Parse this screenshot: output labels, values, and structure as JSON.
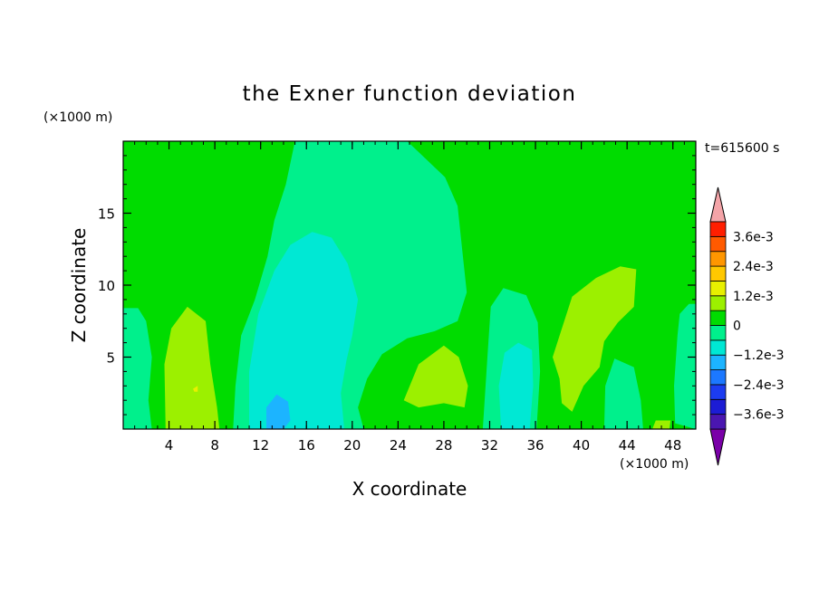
{
  "chart_data": {
    "type": "heatmap",
    "title": "the Exner function deviation",
    "xlabel": "X coordinate",
    "ylabel": "Z coordinate",
    "x_unit": "(×1000 m)",
    "y_unit": "(×1000 m)",
    "time_label": "t=615600 s",
    "xlim": [
      0,
      50
    ],
    "ylim": [
      0,
      20
    ],
    "x_ticks": [
      4,
      8,
      12,
      16,
      20,
      24,
      28,
      32,
      36,
      40,
      44,
      48
    ],
    "y_ticks": [
      5,
      10,
      15
    ],
    "colorbar": {
      "levels": [
        -0.0042,
        -0.0036,
        -0.003,
        -0.0024,
        -0.0018,
        -0.0012,
        -0.0006,
        0,
        0.0006,
        0.0012,
        0.0018,
        0.0024,
        0.003,
        0.0036,
        0.0042
      ],
      "colors": [
        "#7a00a8",
        "#4a16b0",
        "#1c1cd4",
        "#1c3cf0",
        "#1c78ff",
        "#1cb4ff",
        "#00e8d4",
        "#00f08c",
        "#00dc00",
        "#9cf000",
        "#e8f000",
        "#ffc800",
        "#ff9600",
        "#ff5a00",
        "#ff1e00",
        "#f4a4a8"
      ],
      "tick_labels": [
        {
          "value": 0.0036,
          "label": "3.6e-3"
        },
        {
          "value": 0.0024,
          "label": "2.4e-3"
        },
        {
          "value": 0.0012,
          "label": "1.2e-3"
        },
        {
          "value": 0,
          "label": "0"
        },
        {
          "value": -0.0012,
          "label": "−1.2e-3"
        },
        {
          "value": -0.0024,
          "label": "−2.4e-3"
        },
        {
          "value": -0.0036,
          "label": "−3.6e-3"
        }
      ]
    },
    "background_value": 0.0003,
    "regions": [
      {
        "value": -0.0003,
        "points": [
          [
            7.3,
            20
          ],
          [
            15,
            20
          ],
          [
            14.2,
            17
          ],
          [
            13.2,
            14.5
          ],
          [
            12.6,
            12
          ],
          [
            11.5,
            9
          ],
          [
            10.3,
            6.5
          ],
          [
            9.8,
            3
          ],
          [
            9.6,
            0
          ],
          [
            21,
            0
          ],
          [
            20.5,
            1.5
          ],
          [
            21.3,
            3.5
          ],
          [
            22.6,
            5.2
          ],
          [
            24.8,
            6.3
          ],
          [
            27.2,
            6.8
          ],
          [
            29.2,
            7.5
          ],
          [
            30,
            9.5
          ],
          [
            29.6,
            12.5
          ],
          [
            29.2,
            15.5
          ],
          [
            28.1,
            17.5
          ],
          [
            24.8,
            20
          ]
        ]
      },
      {
        "value": -0.0009,
        "points": [
          [
            11,
            0
          ],
          [
            11,
            4
          ],
          [
            11.8,
            8
          ],
          [
            13.2,
            11
          ],
          [
            14.6,
            12.8
          ],
          [
            16.5,
            13.7
          ],
          [
            18.2,
            13.3
          ],
          [
            19.6,
            11.5
          ],
          [
            20.5,
            9
          ],
          [
            20,
            6.5
          ],
          [
            19.5,
            4.8
          ],
          [
            19,
            2.5
          ],
          [
            19.3,
            0
          ]
        ]
      },
      {
        "value": -0.0015,
        "points": [
          [
            12.5,
            0
          ],
          [
            12.5,
            1.5
          ],
          [
            13.4,
            2.4
          ],
          [
            14.4,
            1.9
          ],
          [
            14.6,
            0.6
          ],
          [
            14,
            0
          ]
        ]
      },
      {
        "value": -0.0003,
        "points": [
          [
            0,
            8.4
          ],
          [
            1.3,
            8.4
          ],
          [
            2,
            7.5
          ],
          [
            2.5,
            5
          ],
          [
            2.2,
            2
          ],
          [
            2.5,
            0
          ],
          [
            0,
            0
          ]
        ]
      },
      {
        "value": 0.0009,
        "points": [
          [
            3.7,
            0
          ],
          [
            3.6,
            4.5
          ],
          [
            4.2,
            7
          ],
          [
            5.6,
            8.5
          ],
          [
            7.2,
            7.5
          ],
          [
            7.6,
            4.5
          ],
          [
            8.2,
            1.5
          ],
          [
            8.4,
            0
          ]
        ]
      },
      {
        "value": 0.0014,
        "points": [
          [
            6.1,
            2.8
          ],
          [
            6.5,
            3
          ],
          [
            6.5,
            2.6
          ],
          [
            6.2,
            2.6
          ]
        ]
      },
      {
        "value": 0.0009,
        "points": [
          [
            24.5,
            2
          ],
          [
            25.8,
            4.5
          ],
          [
            28,
            5.8
          ],
          [
            29.3,
            5
          ],
          [
            30.1,
            3
          ],
          [
            29.8,
            1.5
          ],
          [
            28,
            1.8
          ],
          [
            25.8,
            1.5
          ]
        ]
      },
      {
        "value": -0.0003,
        "points": [
          [
            31.4,
            0
          ],
          [
            31.8,
            5
          ],
          [
            32.1,
            8.5
          ],
          [
            33.2,
            9.8
          ],
          [
            35.2,
            9.3
          ],
          [
            36.2,
            7.4
          ],
          [
            36.4,
            4
          ],
          [
            36.1,
            0
          ]
        ]
      },
      {
        "value": -0.0009,
        "points": [
          [
            33,
            0
          ],
          [
            32.8,
            3
          ],
          [
            33.3,
            5.3
          ],
          [
            34.5,
            6
          ],
          [
            35.7,
            5.5
          ],
          [
            35.8,
            3
          ],
          [
            35.5,
            0
          ]
        ]
      },
      {
        "value": 0.0009,
        "points": [
          [
            37.5,
            5
          ],
          [
            39.2,
            9.2
          ],
          [
            41.3,
            10.5
          ],
          [
            43.4,
            11.3
          ],
          [
            44.8,
            11.1
          ],
          [
            44.6,
            8.5
          ],
          [
            43.2,
            7.4
          ],
          [
            42,
            6.1
          ],
          [
            41.6,
            4.3
          ],
          [
            40.2,
            3
          ],
          [
            39.2,
            1.2
          ],
          [
            38.3,
            1.8
          ],
          [
            38.1,
            3.5
          ]
        ]
      },
      {
        "value": -0.0003,
        "points": [
          [
            42,
            0
          ],
          [
            42.1,
            3
          ],
          [
            42.9,
            4.9
          ],
          [
            44.6,
            4.3
          ],
          [
            45.2,
            2
          ],
          [
            45.4,
            0
          ]
        ]
      },
      {
        "value": 0.0009,
        "points": [
          [
            46.2,
            0
          ],
          [
            46.5,
            0.6
          ],
          [
            47.8,
            0.6
          ],
          [
            47.7,
            0
          ]
        ]
      },
      {
        "value": -0.0003,
        "points": [
          [
            50,
            0
          ],
          [
            48.2,
            0.4
          ],
          [
            48.1,
            3
          ],
          [
            48.4,
            6.5
          ],
          [
            48.6,
            8
          ],
          [
            49.4,
            8.7
          ],
          [
            50,
            8.7
          ]
        ]
      }
    ]
  }
}
